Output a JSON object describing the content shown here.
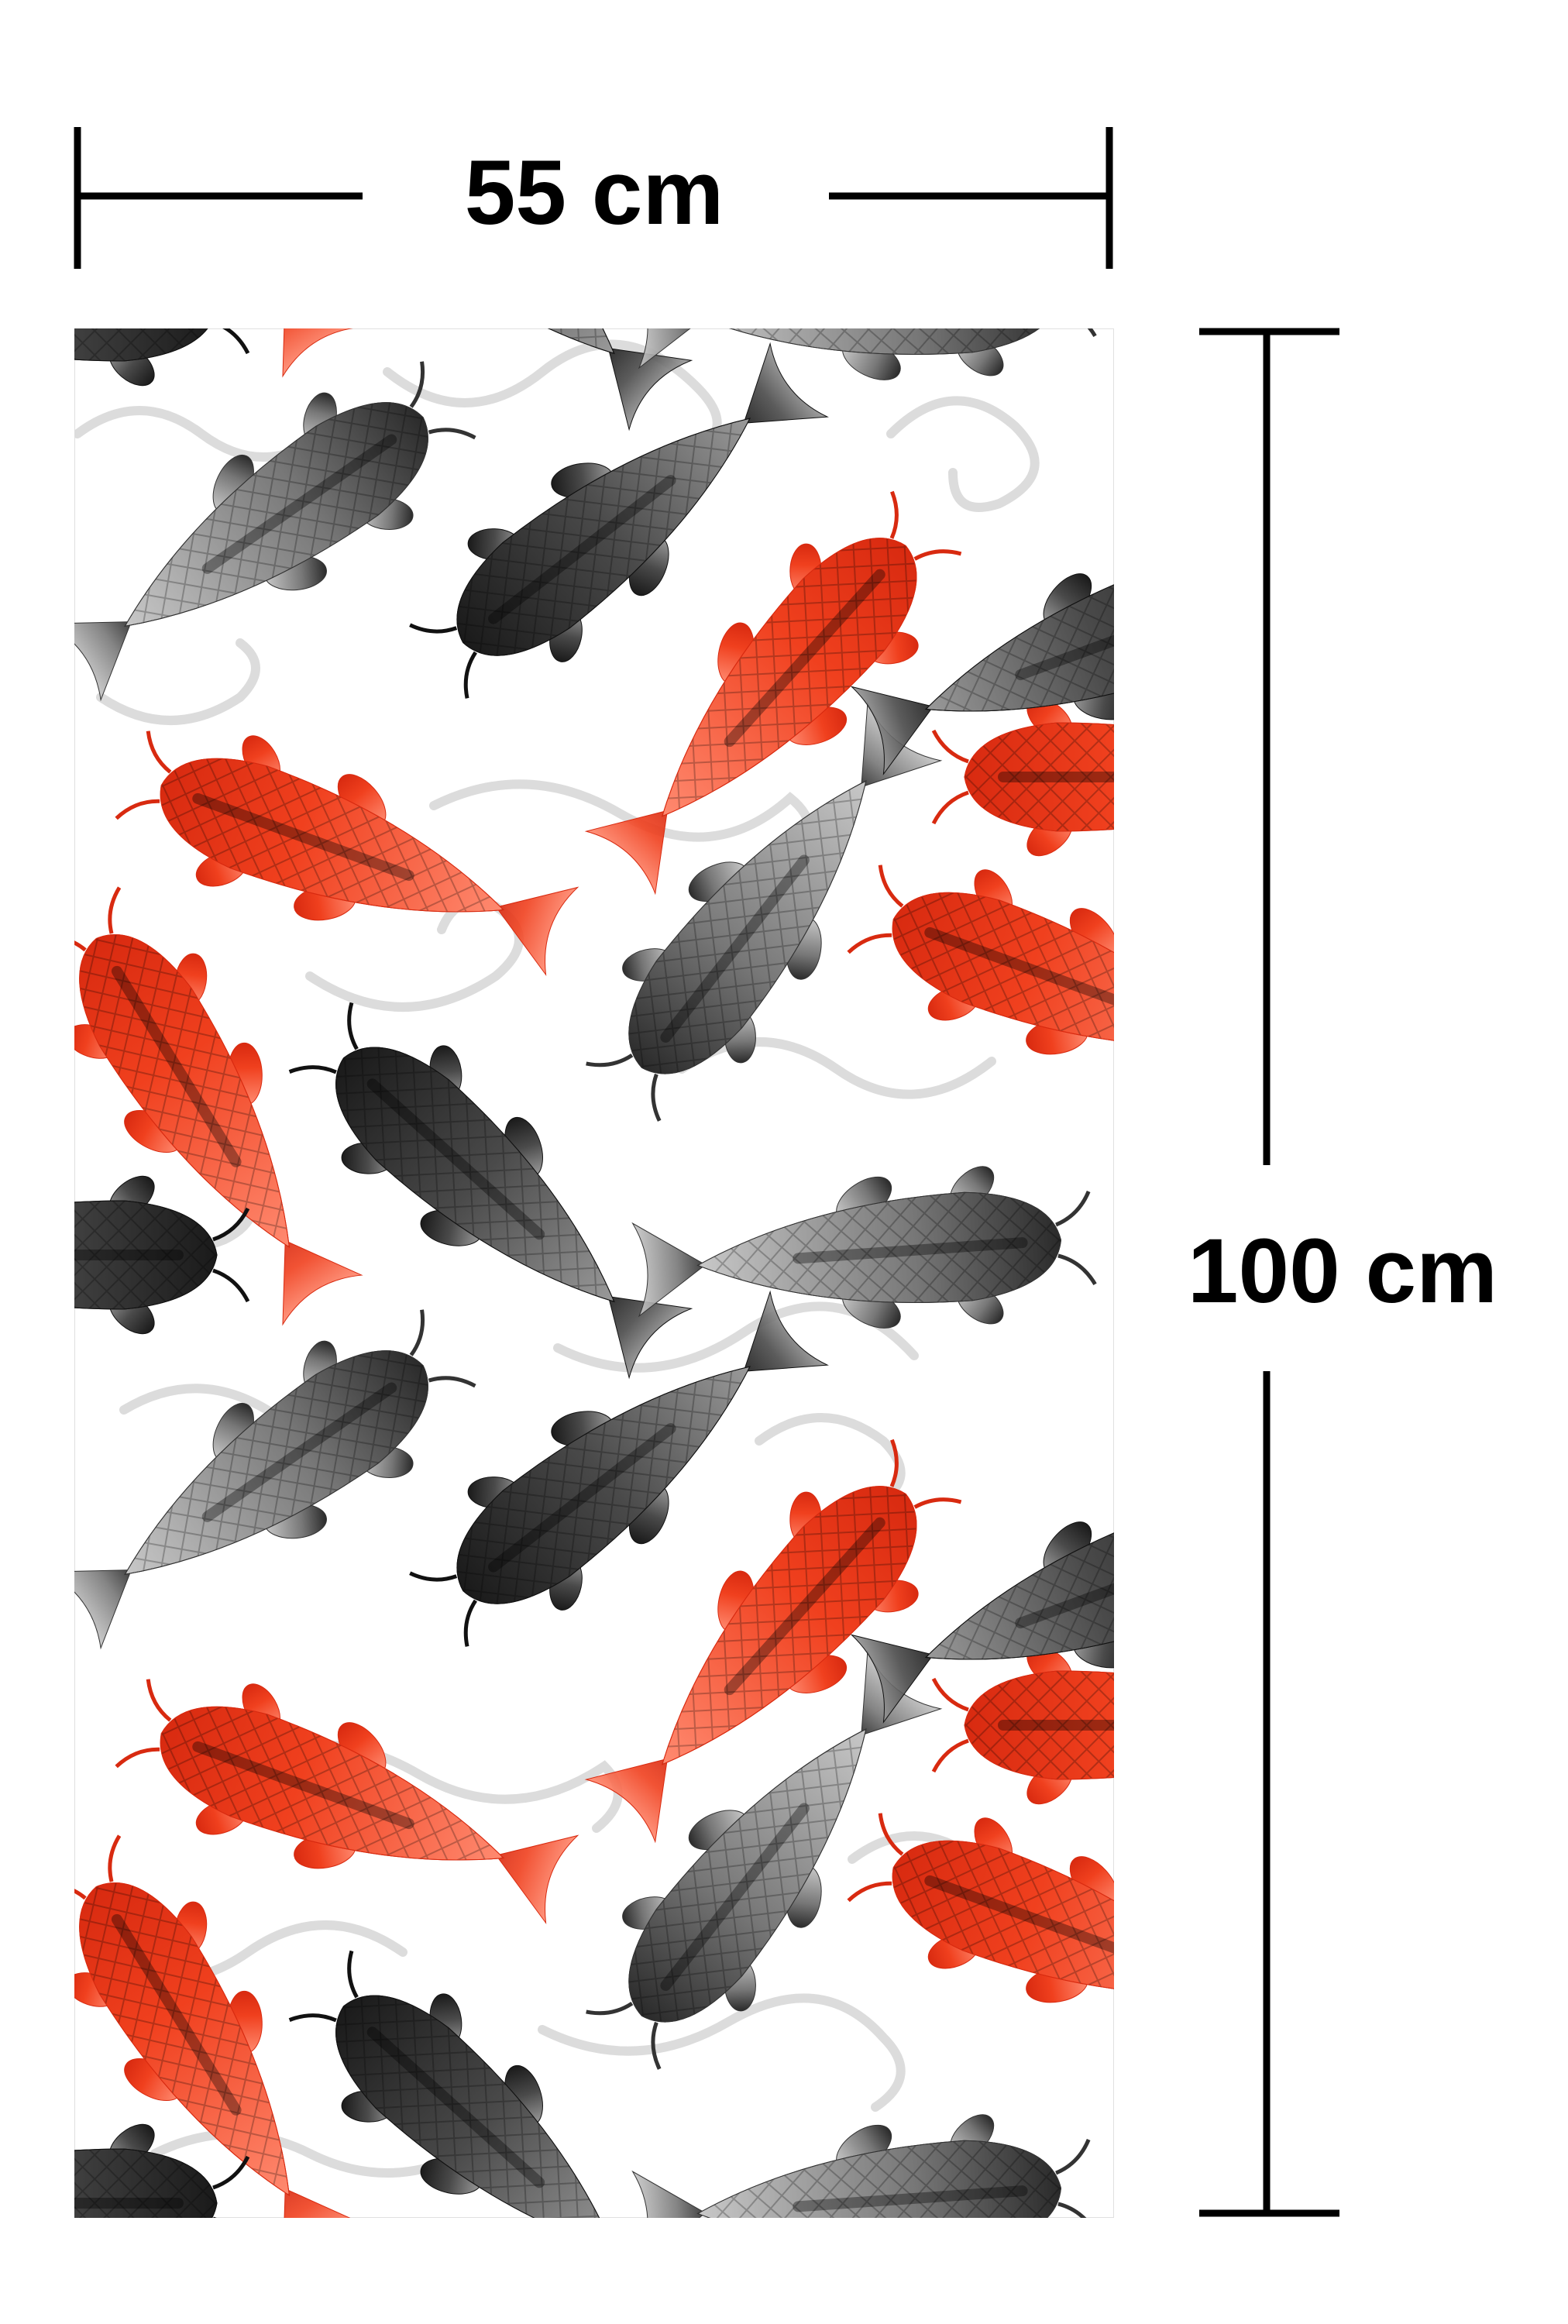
{
  "dimensions": {
    "width_label": "55 cm",
    "height_label": "100 cm"
  }
}
